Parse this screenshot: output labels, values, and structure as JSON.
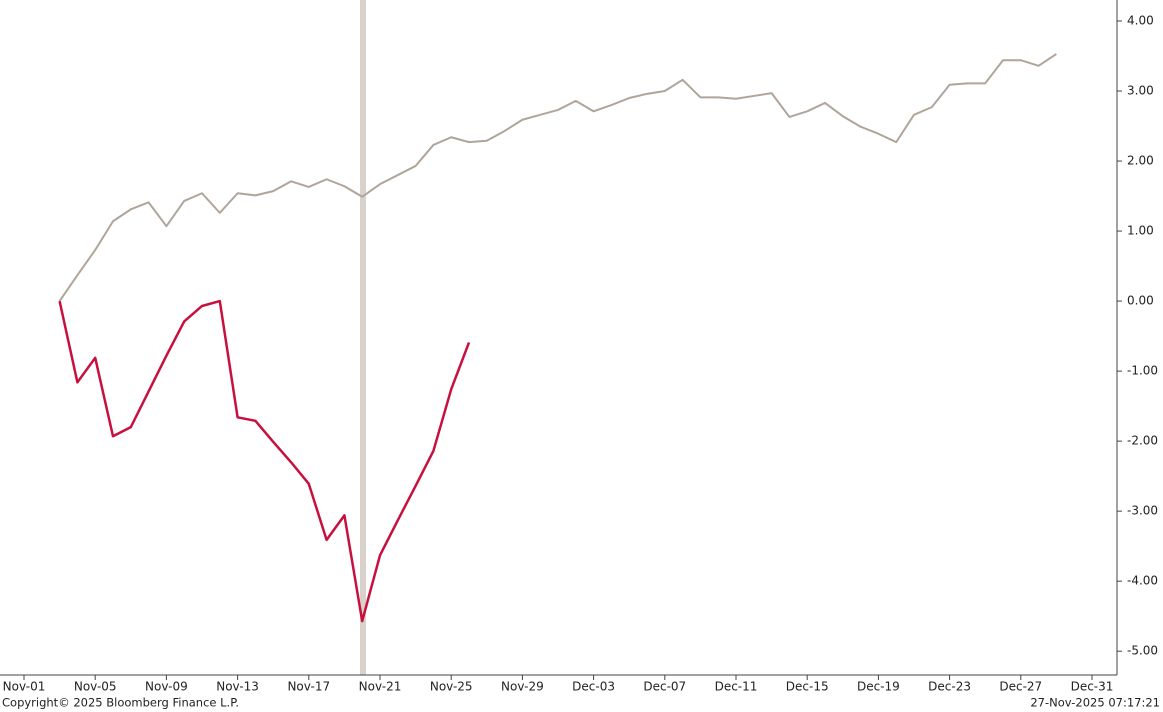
{
  "chart_data": {
    "type": "line",
    "categories": [
      "Nov-01",
      null,
      null,
      null,
      "Nov-05",
      null,
      null,
      null,
      "Nov-09",
      null,
      null,
      null,
      "Nov-13",
      null,
      null,
      null,
      "Nov-17",
      null,
      null,
      null,
      "Nov-21",
      null,
      null,
      null,
      "Nov-25",
      null,
      null,
      null,
      "Nov-29",
      null,
      null,
      null,
      "Dec-03",
      null,
      null,
      null,
      "Dec-07",
      null,
      null,
      null,
      "Dec-11",
      null,
      null,
      null,
      "Dec-15",
      null,
      null,
      null,
      "Dec-19",
      null,
      null,
      null,
      "Dec-23",
      null,
      null,
      null,
      "Dec-27",
      null,
      null,
      null,
      "Dec-31"
    ],
    "series": [
      {
        "color": "#b0a59a",
        "values": [
          null,
          null,
          0.0,
          0.37,
          0.73,
          1.14,
          1.31,
          1.41,
          1.07,
          1.43,
          1.54,
          1.26,
          1.54,
          1.51,
          1.57,
          1.71,
          1.63,
          1.74,
          1.64,
          1.49,
          1.67,
          1.8,
          1.93,
          2.23,
          2.34,
          2.27,
          2.29,
          2.43,
          2.59,
          2.66,
          2.73,
          2.86,
          2.71,
          2.8,
          2.9,
          2.96,
          3.0,
          3.16,
          2.91,
          2.91,
          2.89,
          2.93,
          2.97,
          2.63,
          2.71,
          2.83,
          2.64,
          2.49,
          2.39,
          2.27,
          2.66,
          2.77,
          3.09,
          3.11,
          3.11,
          3.44,
          3.44,
          3.36,
          3.53,
          null,
          null
        ]
      },
      {
        "color": "#c8103e",
        "values": [
          null,
          null,
          0.0,
          -1.16,
          -0.81,
          -1.93,
          -1.8,
          -1.29,
          -0.78,
          -0.29,
          -0.07,
          0.0,
          -1.66,
          -1.71,
          -2.01,
          -2.3,
          -2.61,
          -3.41,
          -3.06,
          -4.57,
          -3.63,
          -3.13,
          -2.64,
          -2.14,
          -1.26,
          -0.59,
          null,
          null,
          null,
          null,
          null,
          null,
          null,
          null,
          null,
          null,
          null,
          null,
          null,
          null,
          null,
          null,
          null,
          null,
          null,
          null,
          null,
          null,
          null,
          null,
          null,
          null,
          null,
          null,
          null,
          null,
          null,
          null,
          null,
          null,
          null
        ]
      }
    ],
    "ylim": [
      -5.34,
      4.3
    ],
    "yticks": [
      {
        "value": 4,
        "label": "4.00"
      },
      {
        "value": 3,
        "label": "3.00"
      },
      {
        "value": 2,
        "label": "2.00"
      },
      {
        "value": 1,
        "label": "1.00"
      },
      {
        "value": 0,
        "label": "0.00"
      },
      {
        "value": -1,
        "label": "-1.00"
      },
      {
        "value": -2,
        "label": "-2.00"
      },
      {
        "value": -3,
        "label": "-3.00"
      },
      {
        "value": -4,
        "label": "-4.00"
      },
      {
        "value": -5,
        "label": "-5.00"
      }
    ],
    "copyright": "Copyright© 2025 Bloomberg Finance L.P.",
    "timestamp": "27-Nov-2025 07:17:21"
  }
}
